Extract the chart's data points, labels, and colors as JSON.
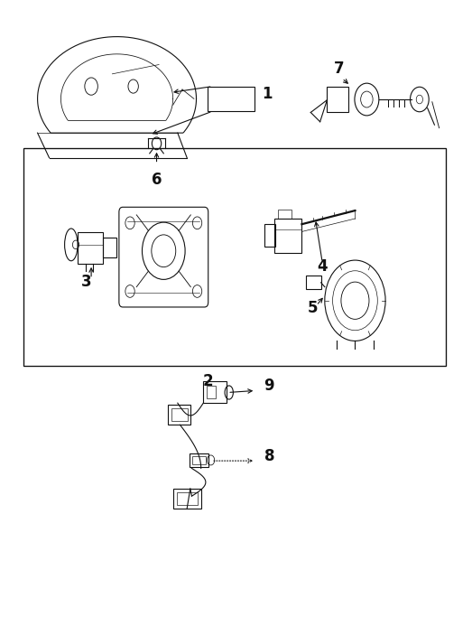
{
  "bg_color": "#ffffff",
  "line_color": "#111111",
  "fig_width": 5.23,
  "fig_height": 6.93,
  "dpi": 100,
  "lw": 0.8,
  "fs": 12
}
